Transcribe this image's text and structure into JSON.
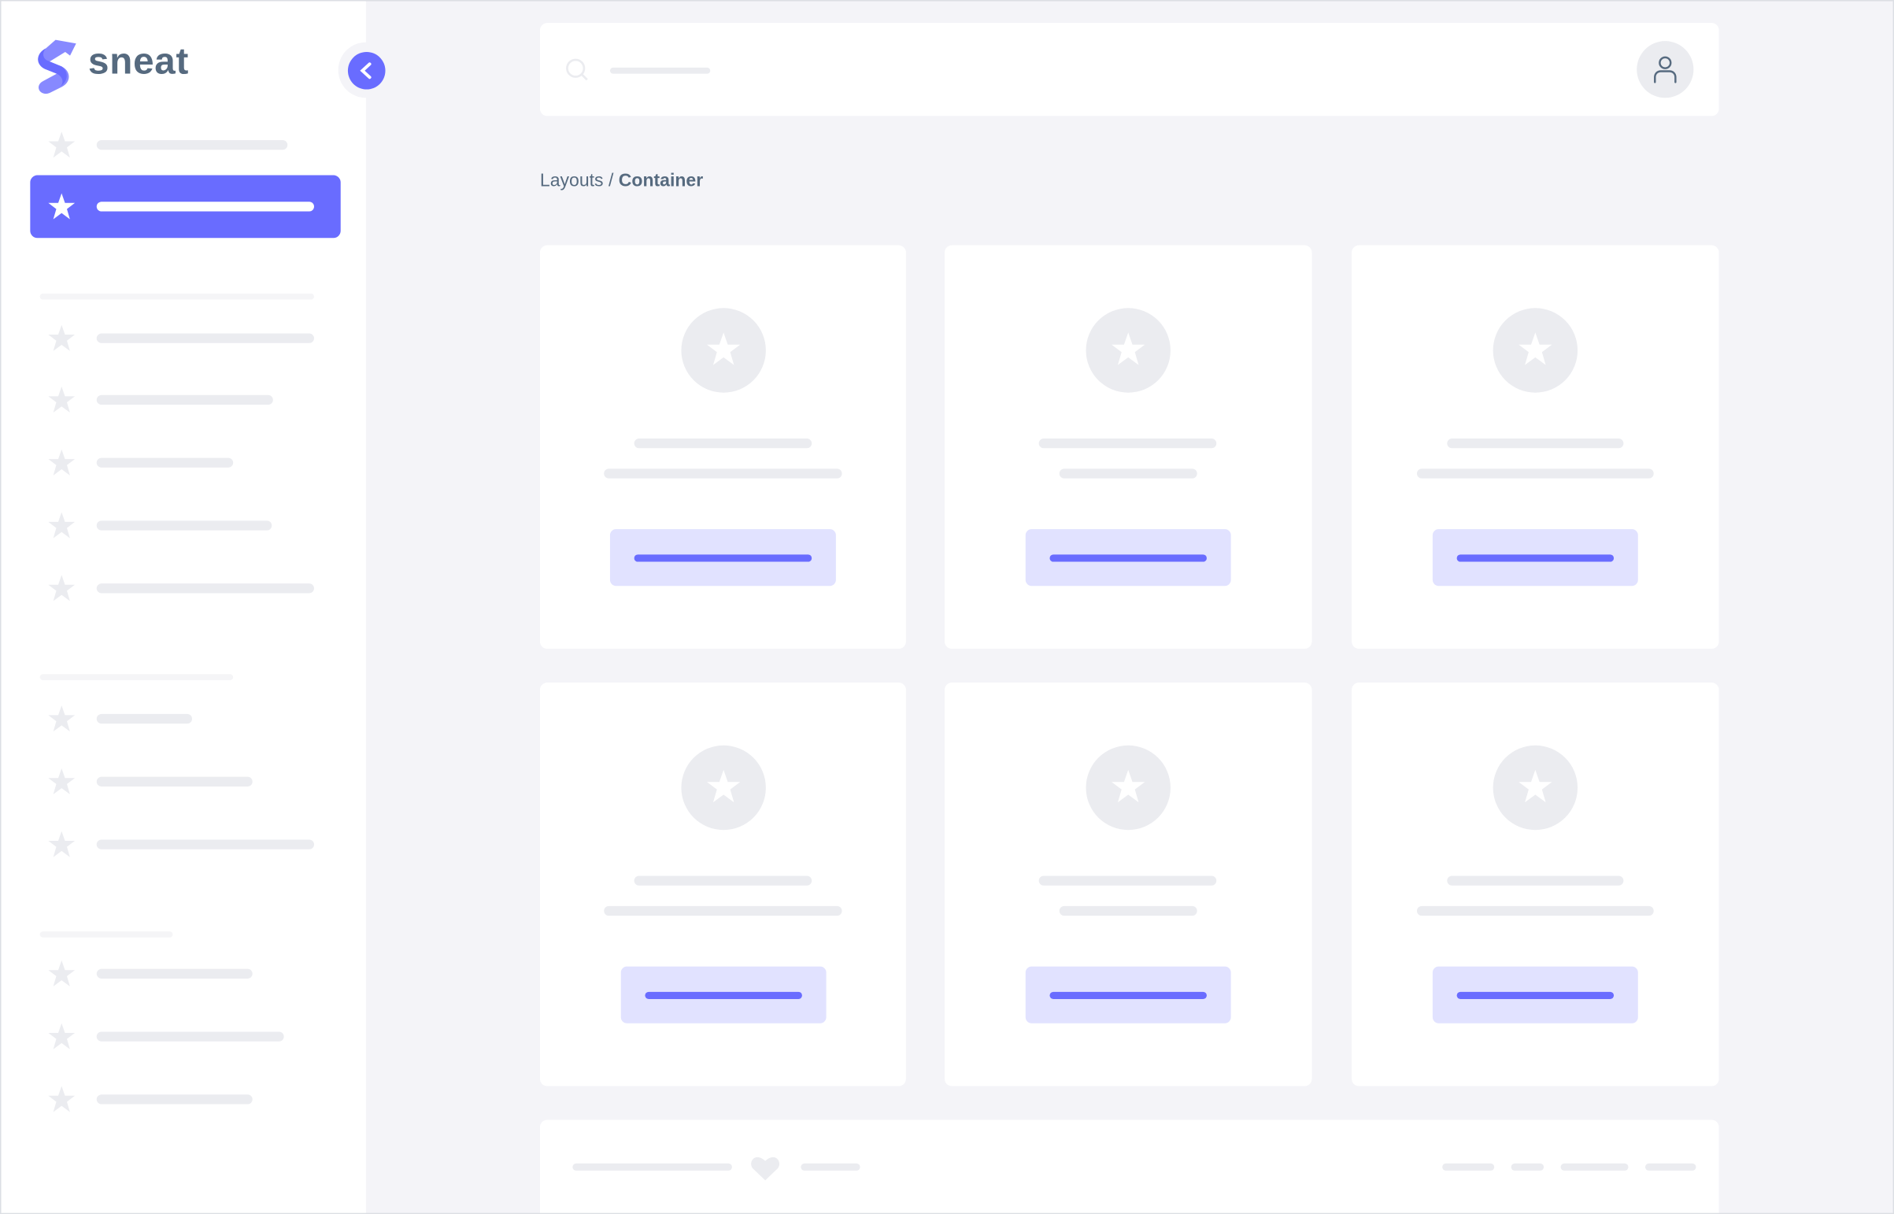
{
  "app": {
    "logo_text": "sneat",
    "accent_color": "#696cff",
    "text_color": "#566a7f"
  },
  "sidebar": {
    "toggle_icon": "chevron-left-icon",
    "item_icon": "star-icon",
    "active_index": 1
  },
  "navbar": {
    "search_icon": "search-icon",
    "avatar_icon": "user-icon"
  },
  "breadcrumb": {
    "parent": "Layouts",
    "separator": "/",
    "current": "Container"
  },
  "cards": {
    "count": 6,
    "icon": "star-icon"
  },
  "footer": {
    "icon": "heart-icon"
  }
}
